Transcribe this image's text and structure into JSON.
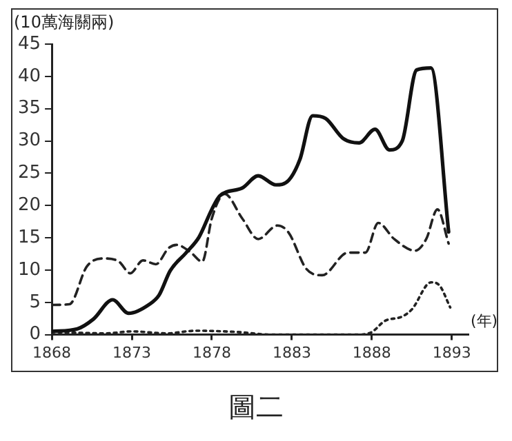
{
  "chart_data": {
    "type": "line",
    "ylabel": "(10萬海關兩)",
    "xlabel": "(年)",
    "xlim": [
      1868,
      1894
    ],
    "xticks": [
      1868,
      1873,
      1878,
      1883,
      1888,
      1893
    ],
    "ylim": [
      0,
      45
    ],
    "yticks": [
      0,
      5,
      10,
      15,
      20,
      25,
      30,
      35,
      40,
      45
    ],
    "grid": false,
    "legend": false,
    "marker": "none",
    "annotations": [
      "圖二"
    ],
    "series": [
      {
        "color": "#111111",
        "line_style": "solid",
        "x": [
          1868,
          1869.6,
          1870.6,
          1871.8,
          1872.8,
          1874.1,
          1874.7,
          1875.4,
          1876.4,
          1877.2,
          1878,
          1878.5,
          1879.9,
          1880.9,
          1882,
          1882.8,
          1883.5,
          1884.3,
          1885.1,
          1886.2,
          1887.2,
          1888.2,
          1889.1,
          1889.9,
          1890.8,
          1891.7,
          1892.8
        ],
        "values": [
          0.5,
          0.9,
          2.4,
          5.4,
          3.3,
          4.7,
          6.1,
          9.9,
          12.7,
          15.1,
          19.4,
          21.5,
          22.7,
          24.6,
          23.2,
          23.9,
          27.1,
          33.9,
          33.5,
          30.4,
          29.7,
          31.8,
          28.6,
          30,
          41,
          41.3,
          15.9
        ]
      },
      {
        "color": "#222222",
        "line_style": "dashed",
        "x": [
          1868,
          1869.1,
          1870.2,
          1871.3,
          1872.2,
          1872.9,
          1873.7,
          1874.5,
          1875.3,
          1875.8,
          1876.7,
          1877.4,
          1878,
          1878.8,
          1879.9,
          1880.9,
          1882.1,
          1882.8,
          1883.9,
          1884.9,
          1886.5,
          1887.6,
          1888.4,
          1889.4,
          1890.7,
          1891.4,
          1892.1,
          1892.8
        ],
        "values": [
          4.6,
          4.7,
          10.6,
          11.8,
          11.3,
          9.5,
          11.5,
          10.9,
          13.4,
          13.9,
          12.7,
          11.3,
          18,
          21.8,
          18,
          14.8,
          16.9,
          15.8,
          10.2,
          9.2,
          12.7,
          12.7,
          17.3,
          14.8,
          13,
          14.8,
          19.4,
          14.1
        ]
      },
      {
        "color": "#222222",
        "line_style": "dotted",
        "x": [
          1868,
          1871.4,
          1873,
          1875.2,
          1877,
          1879.6,
          1881.7,
          1884.1,
          1887.2,
          1888,
          1888.8,
          1889.9,
          1890.5,
          1891.7,
          1892.2,
          1892.9
        ],
        "values": [
          0.4,
          0.2,
          0.5,
          0.2,
          0.6,
          0.4,
          0,
          0,
          0,
          0.4,
          2.1,
          2.8,
          3.9,
          8.1,
          7.7,
          4.2
        ]
      }
    ]
  }
}
